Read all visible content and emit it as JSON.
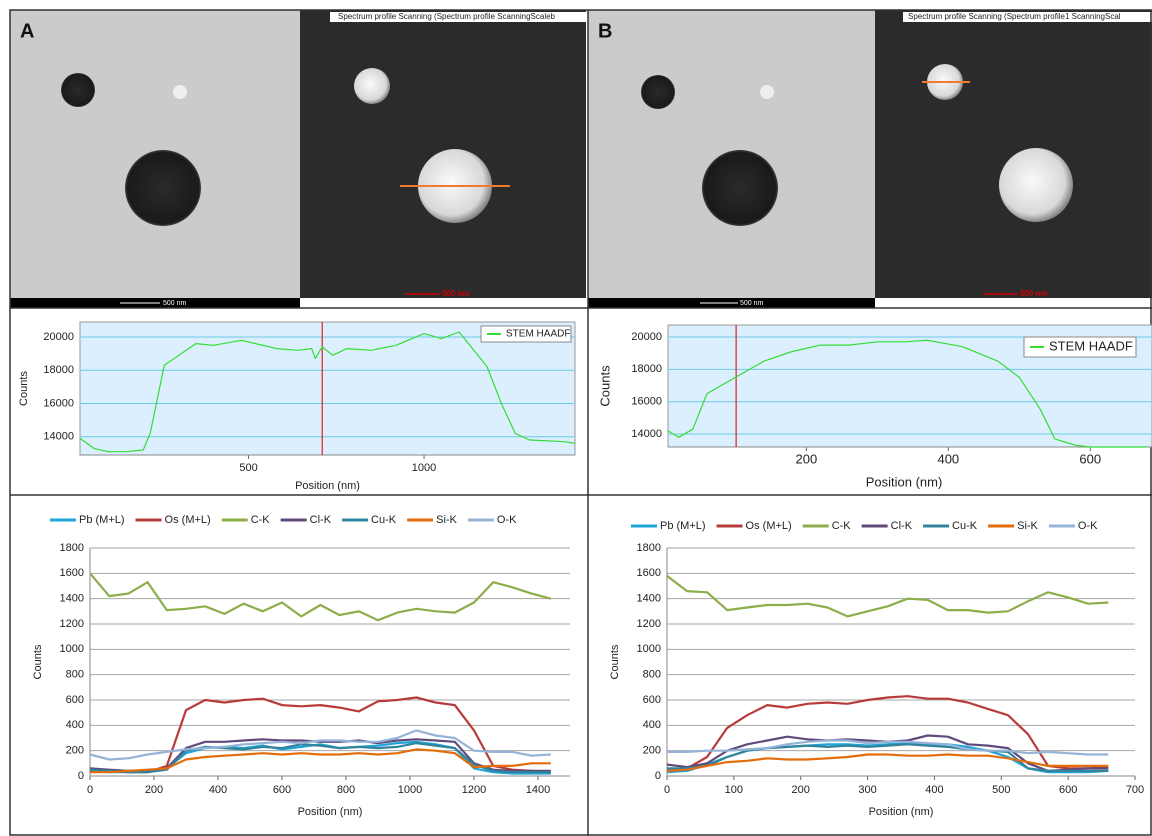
{
  "figure": {
    "panels": [
      {
        "label": "A",
        "image_title": "Spectrum profile Scanning (Spectrum profile ScanningScaleb",
        "scale_bar_left": "500 nm",
        "scale_bar_right": "500 nm"
      },
      {
        "label": "B",
        "image_title": "Spectrum profile Scanning (Spectrum profile1 ScanningScal",
        "scale_bar_left": "500 nm",
        "scale_bar_right": "500 nm"
      }
    ]
  },
  "chart_data": [
    {
      "type": "line",
      "xlabel": "Position (nm)",
      "ylabel": "Counts",
      "background": "#dcefff",
      "grid": true,
      "legend": "top-right",
      "cursor": 710,
      "cursor_color": "#e02020",
      "xlim": [
        20,
        1430
      ],
      "xticks": [
        500,
        1000
      ],
      "ylim": [
        12900,
        20900
      ],
      "yticks": [
        14000,
        16000,
        18000,
        20000
      ],
      "x": [
        20,
        60,
        100,
        150,
        200,
        220,
        260,
        350,
        400,
        480,
        580,
        640,
        680,
        690,
        710,
        740,
        780,
        850,
        920,
        1000,
        1050,
        1100,
        1180,
        1220,
        1260,
        1300,
        1400,
        1430
      ],
      "series": [
        {
          "name": "STEM HAADF",
          "color": "#33dd33",
          "values": [
            13900,
            13300,
            13100,
            13100,
            13200,
            14200,
            18300,
            19600,
            19500,
            19800,
            19300,
            19200,
            19300,
            18700,
            19400,
            18900,
            19300,
            19200,
            19500,
            20200,
            19900,
            20300,
            18200,
            16000,
            14200,
            13800,
            13700,
            13600
          ]
        }
      ]
    },
    {
      "type": "line",
      "xlabel": "Position (nm)",
      "ylabel": "Counts",
      "background": "#dcefff",
      "grid": true,
      "legend": "top-right",
      "cursor": 101,
      "cursor_color": "#e02020",
      "xlim": [
        5,
        687
      ],
      "xticks": [
        200,
        400,
        600
      ],
      "ylim": [
        13200,
        20740
      ],
      "yticks": [
        14000,
        16000,
        18000,
        20000
      ],
      "x": [
        5,
        20,
        40,
        60,
        100,
        140,
        180,
        220,
        260,
        300,
        340,
        370,
        420,
        470,
        500,
        530,
        550,
        580,
        600,
        640,
        680
      ],
      "series": [
        {
          "name": "STEM HAADF",
          "color": "#33dd33",
          "values": [
            14200,
            13800,
            14300,
            16500,
            17500,
            18500,
            19100,
            19500,
            19500,
            19700,
            19700,
            19800,
            19400,
            18500,
            17500,
            15500,
            13700,
            13300,
            13200,
            13200,
            13200
          ]
        }
      ]
    },
    {
      "type": "line",
      "xlabel": "Position (nm)",
      "ylabel": "Counts",
      "background": "#ffffff",
      "grid": true,
      "legend": "top",
      "xlim": [
        0,
        1500
      ],
      "xticks": [
        0,
        200,
        400,
        600,
        800,
        1000,
        1200,
        1400
      ],
      "ylim": [
        0,
        1800
      ],
      "yticks": [
        0,
        200,
        400,
        600,
        800,
        1000,
        1200,
        1400,
        1600,
        1800
      ],
      "x": [
        0,
        60,
        120,
        180,
        240,
        300,
        360,
        420,
        480,
        540,
        600,
        660,
        720,
        780,
        840,
        900,
        960,
        1020,
        1080,
        1140,
        1200,
        1260,
        1320,
        1380,
        1440
      ],
      "series": [
        {
          "name": "Pb (M+L)",
          "color": "#1fa5d9",
          "values": [
            40,
            30,
            30,
            30,
            60,
            180,
            220,
            230,
            220,
            240,
            210,
            230,
            250,
            220,
            230,
            240,
            260,
            270,
            250,
            220,
            60,
            30,
            20,
            20,
            20
          ]
        },
        {
          "name": "Os (M+L)",
          "color": "#b83b3b",
          "values": [
            50,
            40,
            30,
            30,
            80,
            520,
            600,
            580,
            600,
            610,
            560,
            550,
            560,
            540,
            510,
            590,
            600,
            620,
            580,
            560,
            360,
            80,
            50,
            40,
            30
          ]
        },
        {
          "name": "C-K",
          "color": "#8cae4a",
          "values": [
            1600,
            1420,
            1440,
            1530,
            1310,
            1320,
            1340,
            1280,
            1360,
            1300,
            1370,
            1260,
            1350,
            1270,
            1300,
            1230,
            1290,
            1320,
            1300,
            1290,
            1370,
            1530,
            1490,
            1440,
            1400
          ]
        },
        {
          "name": "Cl-K",
          "color": "#604a7b",
          "values": [
            60,
            50,
            40,
            40,
            60,
            220,
            270,
            270,
            280,
            290,
            280,
            280,
            270,
            270,
            280,
            260,
            280,
            290,
            280,
            270,
            100,
            50,
            40,
            40,
            40
          ]
        },
        {
          "name": "Cu-K",
          "color": "#31849b",
          "values": [
            50,
            40,
            30,
            30,
            50,
            200,
            230,
            220,
            210,
            230,
            220,
            250,
            240,
            220,
            230,
            220,
            230,
            260,
            240,
            220,
            90,
            40,
            30,
            30,
            30
          ]
        },
        {
          "name": "Si-K",
          "color": "#e46c0a",
          "values": [
            30,
            30,
            40,
            50,
            60,
            130,
            150,
            160,
            170,
            180,
            170,
            180,
            170,
            170,
            180,
            170,
            180,
            210,
            200,
            180,
            70,
            80,
            80,
            100,
            100
          ]
        },
        {
          "name": "O-K",
          "color": "#95b3d7",
          "values": [
            170,
            130,
            140,
            170,
            190,
            210,
            220,
            230,
            250,
            260,
            270,
            260,
            280,
            280,
            270,
            270,
            300,
            360,
            320,
            300,
            200,
            190,
            190,
            160,
            170
          ]
        }
      ]
    },
    {
      "type": "line",
      "xlabel": "Position (nm)",
      "ylabel": "Counts",
      "background": "#ffffff",
      "grid": true,
      "legend": "top",
      "xlim": [
        0,
        700
      ],
      "xticks": [
        0,
        100,
        200,
        300,
        400,
        500,
        600,
        700
      ],
      "ylim": [
        0,
        1800
      ],
      "yticks": [
        0,
        200,
        400,
        600,
        800,
        1000,
        1200,
        1400,
        1600,
        1800
      ],
      "x": [
        0,
        30,
        60,
        90,
        120,
        150,
        180,
        210,
        240,
        270,
        300,
        330,
        360,
        390,
        420,
        450,
        480,
        510,
        540,
        570,
        600,
        630,
        660
      ],
      "series": [
        {
          "name": "Pb (M+L)",
          "color": "#1fa5d9",
          "values": [
            30,
            40,
            90,
            150,
            200,
            220,
            230,
            240,
            250,
            250,
            240,
            250,
            260,
            250,
            250,
            230,
            200,
            150,
            60,
            30,
            30,
            30,
            40
          ]
        },
        {
          "name": "Os (M+L)",
          "color": "#b83b3b",
          "values": [
            40,
            60,
            150,
            380,
            480,
            560,
            540,
            570,
            580,
            570,
            600,
            620,
            630,
            610,
            610,
            580,
            530,
            480,
            330,
            80,
            60,
            60,
            70
          ]
        },
        {
          "name": "C-K",
          "color": "#8cae4a",
          "values": [
            1580,
            1460,
            1450,
            1310,
            1330,
            1350,
            1350,
            1360,
            1330,
            1260,
            1300,
            1340,
            1400,
            1390,
            1310,
            1310,
            1290,
            1300,
            1380,
            1450,
            1410,
            1360,
            1370
          ]
        },
        {
          "name": "Cl-K",
          "color": "#604a7b",
          "values": [
            90,
            70,
            100,
            200,
            250,
            280,
            310,
            290,
            280,
            290,
            280,
            270,
            280,
            320,
            310,
            250,
            240,
            220,
            100,
            40,
            50,
            60,
            60
          ]
        },
        {
          "name": "Cu-K",
          "color": "#31849b",
          "values": [
            60,
            60,
            80,
            150,
            200,
            220,
            230,
            240,
            230,
            240,
            230,
            240,
            250,
            240,
            230,
            210,
            200,
            190,
            60,
            40,
            40,
            40,
            40
          ]
        },
        {
          "name": "Si-K",
          "color": "#e46c0a",
          "values": [
            40,
            50,
            80,
            110,
            120,
            140,
            130,
            130,
            140,
            150,
            170,
            170,
            160,
            160,
            170,
            160,
            160,
            140,
            110,
            80,
            80,
            80,
            80
          ]
        },
        {
          "name": "O-K",
          "color": "#95b3d7",
          "values": [
            190,
            190,
            200,
            200,
            210,
            220,
            250,
            270,
            280,
            280,
            260,
            270,
            270,
            260,
            250,
            210,
            200,
            200,
            180,
            190,
            180,
            170,
            170
          ]
        }
      ]
    }
  ]
}
